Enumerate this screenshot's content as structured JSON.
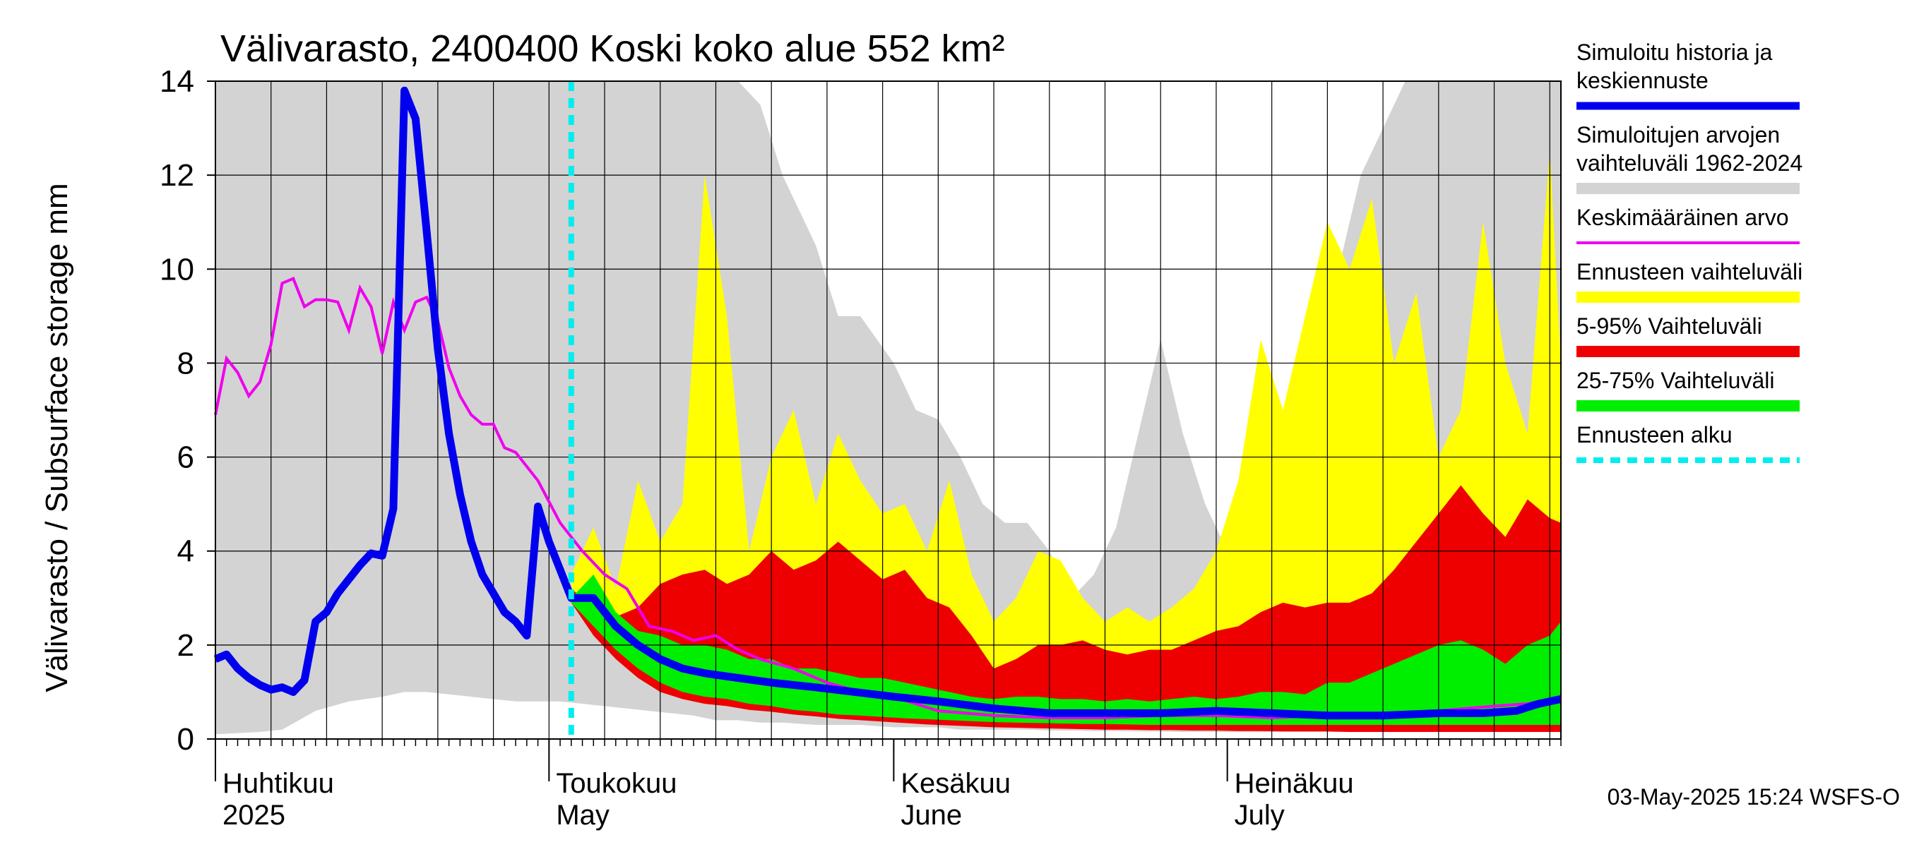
{
  "chart_data": {
    "type": "area",
    "title": "Välivarasto, 2400400 Koski koko alue 552 km²",
    "ylabel": "Välivarasto / Subsurface storage  mm",
    "ylim": [
      0,
      14
    ],
    "yticks": [
      "0",
      "2",
      "4",
      "6",
      "8",
      "10",
      "12",
      "14"
    ],
    "x_start": "2025-04-01",
    "x_end": "2025-07-31",
    "forecast_start": "2025-05-03",
    "month_labels": [
      {
        "fi": "Huhtikuu",
        "en": "2025",
        "date": "2025-04-01"
      },
      {
        "fi": "Toukokuu",
        "en": "May",
        "date": "2025-05-01"
      },
      {
        "fi": "Kesäkuu",
        "en": "June",
        "date": "2025-06-01"
      },
      {
        "fi": "Heinäkuu",
        "en": "July",
        "date": "2025-07-01"
      }
    ],
    "grid": true,
    "legend_placement": "right",
    "legend": [
      {
        "label_lines": [
          "Simuloitu historia ja",
          "keskiennuste"
        ],
        "color": "#0000ee",
        "kind": "line"
      },
      {
        "label_lines": [
          "Simuloitujen arvojen",
          "vaihteluväli 1962-2024"
        ],
        "color": "#d3d3d3",
        "kind": "band"
      },
      {
        "label_lines": [
          "Keskimääräinen arvo"
        ],
        "color": "#ee00ee",
        "kind": "line"
      },
      {
        "label_lines": [
          "Ennusteen vaihteluväli"
        ],
        "color": "#ffff00",
        "kind": "band"
      },
      {
        "label_lines": [
          "5-95% Vaihteluväli"
        ],
        "color": "#ee0000",
        "kind": "band"
      },
      {
        "label_lines": [
          "25-75% Vaihteluväli"
        ],
        "color": "#00ee00",
        "kind": "band"
      },
      {
        "label_lines": [
          "Ennusteen alku"
        ],
        "color": "#00eeee",
        "kind": "dashed"
      }
    ],
    "series": {
      "history_range": {
        "x": [
          "2025-04-01",
          "2025-04-05",
          "2025-04-07",
          "2025-04-10",
          "2025-04-13",
          "2025-04-16",
          "2025-04-18",
          "2025-04-20",
          "2025-04-24",
          "2025-04-28",
          "2025-05-02",
          "2025-05-06",
          "2025-05-10",
          "2025-05-14",
          "2025-05-16",
          "2025-05-18",
          "2025-05-20",
          "2025-05-22",
          "2025-05-25",
          "2025-05-27",
          "2025-05-29",
          "2025-06-01",
          "2025-06-03",
          "2025-06-05",
          "2025-06-07",
          "2025-06-09",
          "2025-06-11",
          "2025-06-13",
          "2025-06-15",
          "2025-06-17",
          "2025-06-19",
          "2025-06-21",
          "2025-06-23",
          "2025-06-25",
          "2025-06-27",
          "2025-06-29",
          "2025-07-01",
          "2025-07-03",
          "2025-07-05",
          "2025-07-07",
          "2025-07-09",
          "2025-07-11",
          "2025-07-13",
          "2025-07-15",
          "2025-07-17",
          "2025-07-19",
          "2025-07-21",
          "2025-07-23",
          "2025-07-25",
          "2025-07-27",
          "2025-07-29",
          "2025-07-31"
        ],
        "upper": [
          14,
          14,
          14,
          14,
          14,
          14,
          14,
          14,
          14,
          14,
          14,
          14,
          14,
          14,
          14,
          14,
          13.5,
          12,
          10.5,
          9,
          9,
          8,
          7,
          6.8,
          6,
          5,
          4.6,
          4.6,
          4,
          3,
          3.5,
          4.5,
          6.5,
          8.5,
          6.5,
          5,
          4,
          4,
          4,
          6.5,
          8,
          10,
          12,
          13,
          14,
          14,
          14,
          14,
          14,
          14,
          14,
          14
        ],
        "lower": [
          0.1,
          0.15,
          0.2,
          0.6,
          0.8,
          0.9,
          1.0,
          1.0,
          0.9,
          0.8,
          0.8,
          0.7,
          0.6,
          0.5,
          0.4,
          0.4,
          0.35,
          0.35,
          0.3,
          0.3,
          0.3,
          0.25,
          0.25,
          0.25,
          0.2,
          0.2,
          0.2,
          0.2,
          0.18,
          0.18,
          0.17,
          0.17,
          0.16,
          0.16,
          0.15,
          0.15,
          0.15,
          0.15,
          0.15,
          0.15,
          0.15,
          0.15,
          0.15,
          0.15,
          0.15,
          0.15,
          0.15,
          0.15,
          0.15,
          0.15,
          0.15,
          0.15
        ]
      },
      "forecast_range": {
        "x": [
          "2025-05-03",
          "2025-05-05",
          "2025-05-07",
          "2025-05-09",
          "2025-05-11",
          "2025-05-13",
          "2025-05-15",
          "2025-05-17",
          "2025-05-19",
          "2025-05-21",
          "2025-05-23",
          "2025-05-25",
          "2025-05-27",
          "2025-05-29",
          "2025-05-31",
          "2025-06-02",
          "2025-06-04",
          "2025-06-06",
          "2025-06-08",
          "2025-06-10",
          "2025-06-12",
          "2025-06-14",
          "2025-06-16",
          "2025-06-18",
          "2025-06-20",
          "2025-06-22",
          "2025-06-24",
          "2025-06-26",
          "2025-06-28",
          "2025-06-30",
          "2025-07-02",
          "2025-07-04",
          "2025-07-06",
          "2025-07-08",
          "2025-07-10",
          "2025-07-12",
          "2025-07-14",
          "2025-07-16",
          "2025-07-18",
          "2025-07-20",
          "2025-07-22",
          "2025-07-24",
          "2025-07-26",
          "2025-07-28",
          "2025-07-30",
          "2025-07-31"
        ],
        "upper": [
          3.5,
          4.5,
          3.2,
          5.5,
          4.2,
          5.0,
          12.0,
          9.0,
          4.0,
          6.0,
          7.0,
          5.0,
          6.5,
          5.5,
          4.8,
          5.0,
          4.0,
          5.5,
          3.5,
          2.5,
          3.0,
          4.0,
          3.8,
          3.0,
          2.5,
          2.8,
          2.5,
          2.8,
          3.2,
          4.0,
          5.5,
          8.5,
          7.0,
          9.0,
          11.0,
          10.0,
          11.5,
          8.0,
          9.5,
          6.0,
          7.0,
          11.0,
          8.0,
          6.5,
          12.5,
          8.0
        ],
        "lower": [
          3.0,
          2.3,
          1.8,
          1.4,
          1.1,
          0.9,
          0.8,
          0.7,
          0.65,
          0.6,
          0.55,
          0.5,
          0.45,
          0.4,
          0.38,
          0.35,
          0.33,
          0.3,
          0.28,
          0.26,
          0.25,
          0.24,
          0.23,
          0.22,
          0.21,
          0.2,
          0.2,
          0.19,
          0.18,
          0.18,
          0.17,
          0.17,
          0.16,
          0.16,
          0.16,
          0.15,
          0.15,
          0.15,
          0.15,
          0.15,
          0.15,
          0.15,
          0.15,
          0.15,
          0.15,
          0.15
        ]
      },
      "p5_95": {
        "x": [
          "2025-05-03",
          "2025-05-05",
          "2025-05-07",
          "2025-05-09",
          "2025-05-11",
          "2025-05-13",
          "2025-05-15",
          "2025-05-17",
          "2025-05-19",
          "2025-05-21",
          "2025-05-23",
          "2025-05-25",
          "2025-05-27",
          "2025-05-29",
          "2025-05-31",
          "2025-06-02",
          "2025-06-04",
          "2025-06-06",
          "2025-06-08",
          "2025-06-10",
          "2025-06-12",
          "2025-06-14",
          "2025-06-16",
          "2025-06-18",
          "2025-06-20",
          "2025-06-22",
          "2025-06-24",
          "2025-06-26",
          "2025-06-28",
          "2025-06-30",
          "2025-07-02",
          "2025-07-04",
          "2025-07-06",
          "2025-07-08",
          "2025-07-10",
          "2025-07-12",
          "2025-07-14",
          "2025-07-16",
          "2025-07-18",
          "2025-07-20",
          "2025-07-22",
          "2025-07-24",
          "2025-07-26",
          "2025-07-28",
          "2025-07-30",
          "2025-07-31"
        ],
        "upper": [
          3.2,
          2.8,
          2.6,
          2.8,
          3.3,
          3.5,
          3.6,
          3.3,
          3.5,
          4.0,
          3.6,
          3.8,
          4.2,
          3.8,
          3.4,
          3.6,
          3.0,
          2.8,
          2.2,
          1.5,
          1.7,
          2.0,
          2.0,
          2.1,
          1.9,
          1.8,
          1.9,
          1.9,
          2.1,
          2.3,
          2.4,
          2.7,
          2.9,
          2.8,
          2.9,
          2.9,
          3.1,
          3.6,
          4.2,
          4.8,
          5.4,
          4.8,
          4.3,
          5.1,
          4.7,
          4.6
        ],
        "lower": [
          2.9,
          2.2,
          1.7,
          1.3,
          1.0,
          0.85,
          0.75,
          0.7,
          0.62,
          0.58,
          0.52,
          0.48,
          0.43,
          0.4,
          0.37,
          0.34,
          0.31,
          0.29,
          0.27,
          0.25,
          0.24,
          0.23,
          0.22,
          0.21,
          0.2,
          0.2,
          0.19,
          0.19,
          0.18,
          0.18,
          0.17,
          0.17,
          0.16,
          0.16,
          0.16,
          0.15,
          0.15,
          0.15,
          0.15,
          0.15,
          0.15,
          0.15,
          0.15,
          0.15,
          0.15,
          0.15
        ]
      },
      "p25_75": {
        "x": [
          "2025-05-03",
          "2025-05-05",
          "2025-05-07",
          "2025-05-09",
          "2025-05-11",
          "2025-05-13",
          "2025-05-15",
          "2025-05-17",
          "2025-05-19",
          "2025-05-21",
          "2025-05-23",
          "2025-05-25",
          "2025-05-27",
          "2025-05-29",
          "2025-05-31",
          "2025-06-02",
          "2025-06-04",
          "2025-06-06",
          "2025-06-08",
          "2025-06-10",
          "2025-06-12",
          "2025-06-14",
          "2025-06-16",
          "2025-06-18",
          "2025-06-20",
          "2025-06-22",
          "2025-06-24",
          "2025-06-26",
          "2025-06-28",
          "2025-06-30",
          "2025-07-02",
          "2025-07-04",
          "2025-07-06",
          "2025-07-08",
          "2025-07-10",
          "2025-07-12",
          "2025-07-14",
          "2025-07-16",
          "2025-07-18",
          "2025-07-20",
          "2025-07-22",
          "2025-07-24",
          "2025-07-26",
          "2025-07-28",
          "2025-07-30",
          "2025-07-31"
        ],
        "upper": [
          3.0,
          3.5,
          2.7,
          2.3,
          2.2,
          2.0,
          2.0,
          1.9,
          1.7,
          1.7,
          1.5,
          1.5,
          1.4,
          1.3,
          1.3,
          1.2,
          1.1,
          1.0,
          0.9,
          0.85,
          0.9,
          0.9,
          0.85,
          0.85,
          0.8,
          0.85,
          0.8,
          0.85,
          0.9,
          0.85,
          0.9,
          1.0,
          1.0,
          0.95,
          1.2,
          1.2,
          1.4,
          1.6,
          1.8,
          2.0,
          2.1,
          1.9,
          1.6,
          2.0,
          2.2,
          2.5
        ],
        "lower": [
          2.9,
          2.4,
          1.9,
          1.5,
          1.2,
          1.0,
          0.9,
          0.85,
          0.75,
          0.7,
          0.62,
          0.58,
          0.52,
          0.5,
          0.47,
          0.44,
          0.42,
          0.4,
          0.38,
          0.36,
          0.35,
          0.34,
          0.33,
          0.32,
          0.32,
          0.31,
          0.3,
          0.3,
          0.3,
          0.3,
          0.3,
          0.3,
          0.3,
          0.3,
          0.3,
          0.3,
          0.3,
          0.3,
          0.3,
          0.3,
          0.3,
          0.3,
          0.3,
          0.3,
          0.3,
          0.3
        ]
      },
      "mean": {
        "x": [
          "2025-04-01",
          "2025-04-02",
          "2025-04-03",
          "2025-04-04",
          "2025-04-05",
          "2025-04-06",
          "2025-04-07",
          "2025-04-08",
          "2025-04-09",
          "2025-04-10",
          "2025-04-11",
          "2025-04-12",
          "2025-04-13",
          "2025-04-14",
          "2025-04-15",
          "2025-04-16",
          "2025-04-17",
          "2025-04-18",
          "2025-04-19",
          "2025-04-20",
          "2025-04-21",
          "2025-04-22",
          "2025-04-23",
          "2025-04-24",
          "2025-04-25",
          "2025-04-26",
          "2025-04-27",
          "2025-04-28",
          "2025-04-29",
          "2025-04-30",
          "2025-05-02",
          "2025-05-04",
          "2025-05-06",
          "2025-05-08",
          "2025-05-10",
          "2025-05-12",
          "2025-05-14",
          "2025-05-16",
          "2025-05-18",
          "2025-05-20",
          "2025-05-23",
          "2025-05-26",
          "2025-05-29",
          "2025-06-01",
          "2025-06-05",
          "2025-06-10",
          "2025-06-15",
          "2025-06-20",
          "2025-06-25",
          "2025-06-30",
          "2025-07-05",
          "2025-07-10",
          "2025-07-15",
          "2025-07-20",
          "2025-07-25",
          "2025-07-28",
          "2025-07-31"
        ],
        "values": [
          6.9,
          8.1,
          7.8,
          7.3,
          7.6,
          8.4,
          9.7,
          9.8,
          9.2,
          9.35,
          9.35,
          9.3,
          8.7,
          9.6,
          9.2,
          8.2,
          9.3,
          8.7,
          9.3,
          9.4,
          8.9,
          7.9,
          7.3,
          6.9,
          6.7,
          6.7,
          6.2,
          6.1,
          5.8,
          5.5,
          4.6,
          4.0,
          3.5,
          3.2,
          2.4,
          2.3,
          2.1,
          2.2,
          1.9,
          1.7,
          1.5,
          1.2,
          1.0,
          0.9,
          0.6,
          0.5,
          0.45,
          0.45,
          0.5,
          0.5,
          0.45,
          0.5,
          0.55,
          0.6,
          0.7,
          0.75,
          0.9
        ]
      },
      "simulated": {
        "x": [
          "2025-04-01",
          "2025-04-02",
          "2025-04-03",
          "2025-04-04",
          "2025-04-05",
          "2025-04-06",
          "2025-04-07",
          "2025-04-08",
          "2025-04-09",
          "2025-04-10",
          "2025-04-11",
          "2025-04-12",
          "2025-04-13",
          "2025-04-14",
          "2025-04-15",
          "2025-04-16",
          "2025-04-17",
          "2025-04-18",
          "2025-04-19",
          "2025-04-20",
          "2025-04-21",
          "2025-04-22",
          "2025-04-23",
          "2025-04-24",
          "2025-04-25",
          "2025-04-26",
          "2025-04-27",
          "2025-04-28",
          "2025-04-29",
          "2025-04-30",
          "2025-05-01",
          "2025-05-02",
          "2025-05-03",
          "2025-05-05",
          "2025-05-07",
          "2025-05-09",
          "2025-05-11",
          "2025-05-13",
          "2025-05-15",
          "2025-05-18",
          "2025-05-21",
          "2025-05-25",
          "2025-06-01",
          "2025-06-05",
          "2025-06-10",
          "2025-06-15",
          "2025-06-20",
          "2025-06-25",
          "2025-06-30",
          "2025-07-05",
          "2025-07-10",
          "2025-07-15",
          "2025-07-20",
          "2025-07-24",
          "2025-07-27",
          "2025-07-29",
          "2025-07-31"
        ],
        "values": [
          1.7,
          1.8,
          1.5,
          1.3,
          1.15,
          1.05,
          1.1,
          1.0,
          1.25,
          2.5,
          2.7,
          3.1,
          3.4,
          3.7,
          3.95,
          3.9,
          4.9,
          13.8,
          13.2,
          10.8,
          8.3,
          6.5,
          5.2,
          4.2,
          3.5,
          3.1,
          2.7,
          2.5,
          2.2,
          4.95,
          4.2,
          3.6,
          3.0,
          3.0,
          2.4,
          2.0,
          1.7,
          1.5,
          1.4,
          1.3,
          1.2,
          1.1,
          0.9,
          0.8,
          0.65,
          0.55,
          0.55,
          0.55,
          0.6,
          0.55,
          0.5,
          0.5,
          0.55,
          0.55,
          0.6,
          0.75,
          0.85
        ]
      }
    }
  },
  "footer": {
    "timestamp": "03-May-2025 15:24 WSFS-O"
  }
}
